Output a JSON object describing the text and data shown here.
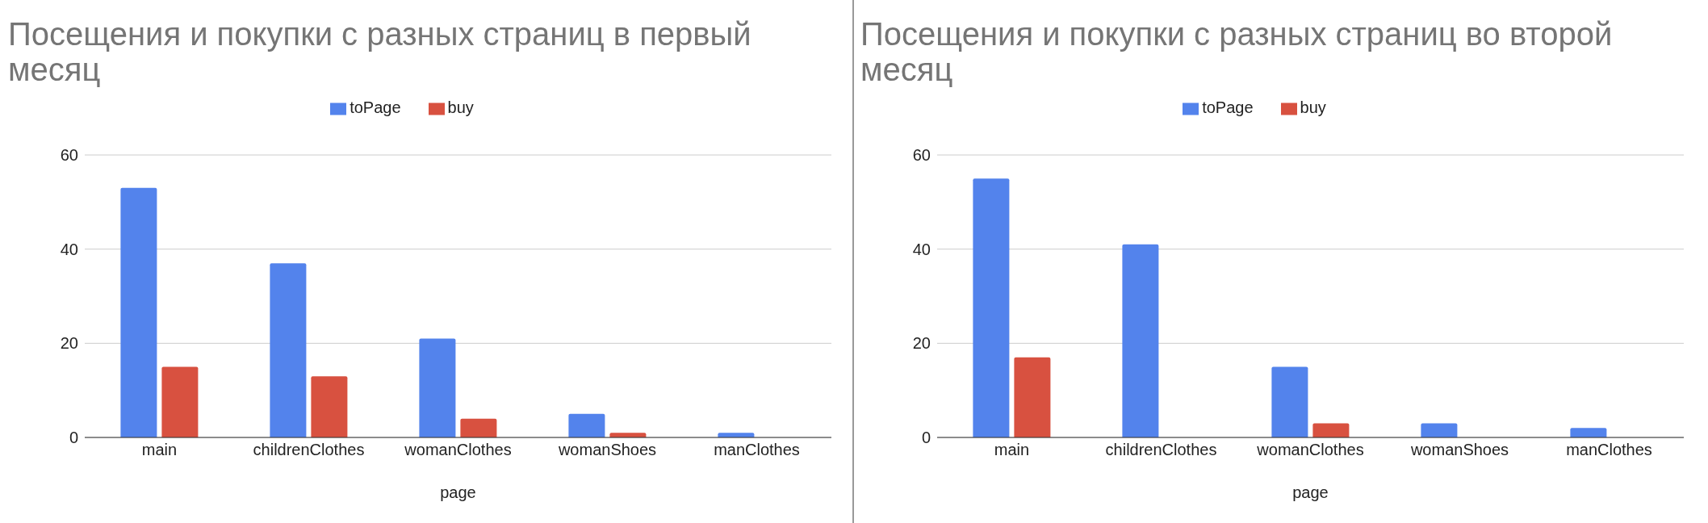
{
  "chart_data": [
    {
      "type": "bar",
      "title": "Посещения и покупки с разных страниц в первый месяц",
      "xlabel": "page",
      "categories": [
        "main",
        "childrenClothes",
        "womanClothes",
        "womanShoes",
        "manClothes"
      ],
      "series": [
        {
          "name": "toPage",
          "color": "#5383ec",
          "values": [
            53,
            37,
            21,
            5,
            1
          ]
        },
        {
          "name": "buy",
          "color": "#d85140",
          "values": [
            15,
            13,
            4,
            1,
            0
          ]
        }
      ],
      "ylim": [
        0,
        60
      ],
      "yticks": [
        0,
        20,
        40,
        60
      ],
      "grid": "y",
      "legend": "top"
    },
    {
      "type": "bar",
      "title": "Посещения и покупки с разных страниц во второй месяц",
      "xlabel": "page",
      "categories": [
        "main",
        "childrenClothes",
        "womanClothes",
        "womanShoes",
        "manClothes"
      ],
      "series": [
        {
          "name": "toPage",
          "color": "#5383ec",
          "values": [
            55,
            41,
            15,
            3,
            2
          ]
        },
        {
          "name": "buy",
          "color": "#d85140",
          "values": [
            17,
            0,
            3,
            0,
            0
          ]
        }
      ],
      "ylim": [
        0,
        60
      ],
      "yticks": [
        0,
        20,
        40,
        60
      ],
      "grid": "y",
      "legend": "top"
    }
  ]
}
